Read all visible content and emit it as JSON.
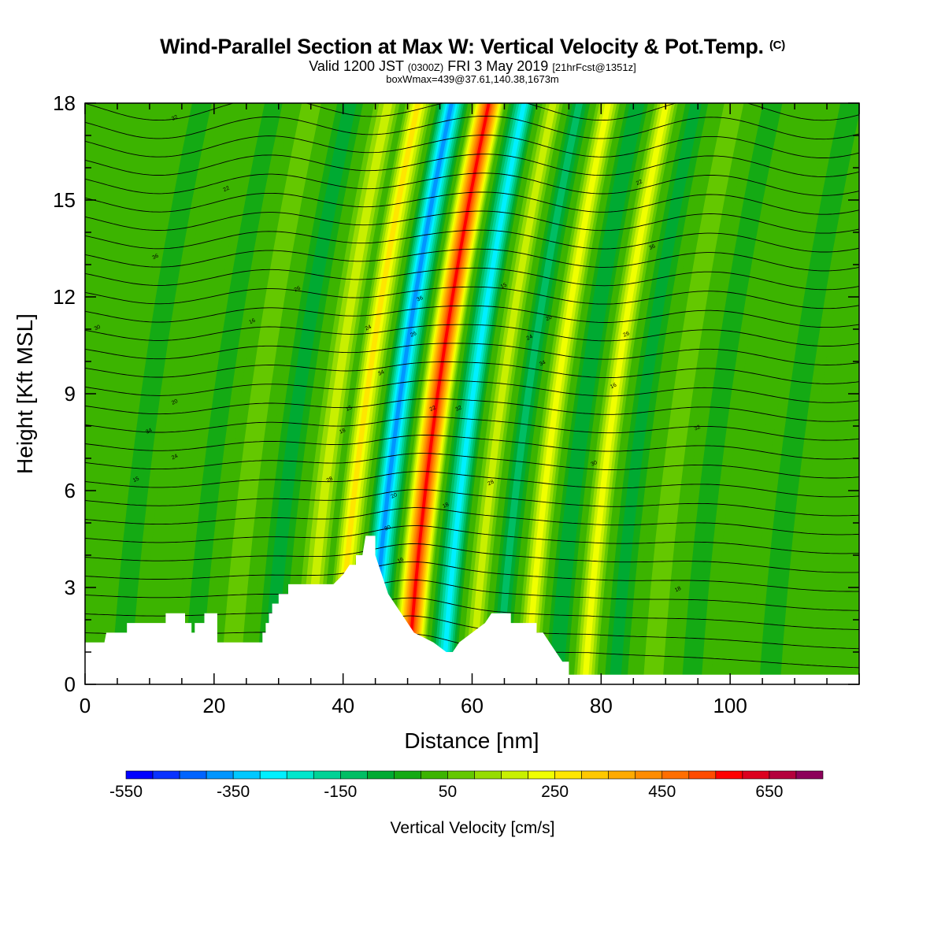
{
  "title": {
    "main": "Wind-Parallel Section at Max W: Vertical Velocity & Pot.Temp.",
    "copyright": "(C)",
    "valid_prefix": "Valid 1200 JST",
    "valid_utc": "(0300Z)",
    "valid_date": "FRI 3 May 2019",
    "forecast": "[21hrFcst@1351z]",
    "boxinfo": "boxWmax=439@37.61,140.38,1673m"
  },
  "chart_data": {
    "type": "heatmap",
    "xlabel": "Distance [nm]",
    "ylabel": "Height [Kft MSL]",
    "xlim": [
      0,
      120
    ],
    "ylim": [
      0,
      18
    ],
    "xticks": [
      0,
      20,
      40,
      60,
      80,
      100
    ],
    "yticks": [
      0,
      3,
      6,
      9,
      12,
      15,
      18
    ],
    "colorbar": {
      "label": "Vertical Velocity [cm/s]",
      "range": [
        -550,
        750
      ],
      "step": 50,
      "tick_labels": [
        -550,
        -350,
        -150,
        50,
        250,
        450,
        650
      ],
      "colors": [
        "#0000ff",
        "#0a32ff",
        "#0064ff",
        "#0096ff",
        "#00c8ff",
        "#00f0ff",
        "#00e6cc",
        "#00d296",
        "#00be64",
        "#00aa32",
        "#14aa14",
        "#3cb400",
        "#64c800",
        "#96dc00",
        "#c8f000",
        "#f0ff00",
        "#ffe600",
        "#ffc800",
        "#ffaa00",
        "#ff8c00",
        "#ff6e00",
        "#ff4b00",
        "#ff0000",
        "#dc001e",
        "#b4003c",
        "#8c005a",
        "#64007d"
      ]
    },
    "series": [
      {
        "name": "Vertical Velocity",
        "type": "filled-contour"
      },
      {
        "name": "Pot.Temp.",
        "type": "contour"
      }
    ],
    "velocity_bands": [
      {
        "x": 5.5,
        "w": -15
      },
      {
        "x": 11.5,
        "w": 10
      },
      {
        "x": 16.5,
        "w": -30
      },
      {
        "x": 22.5,
        "w": 90
      },
      {
        "x": 28.5,
        "w": -60
      },
      {
        "x": 34.5,
        "w": 160
      },
      {
        "x": 39,
        "w": 260
      },
      {
        "x": 44.2,
        "w": -380
      },
      {
        "x": 50,
        "w": 580
      },
      {
        "x": 55.5,
        "w": -280
      },
      {
        "x": 60,
        "w": 190
      },
      {
        "x": 64,
        "w": -140
      },
      {
        "x": 68.5,
        "w": 230
      },
      {
        "x": 73,
        "w": -100
      },
      {
        "x": 77.5,
        "w": 240
      },
      {
        "x": 82,
        "w": -60
      },
      {
        "x": 88,
        "w": 60
      },
      {
        "x": 94,
        "w": -30
      },
      {
        "x": 100,
        "w": 40
      },
      {
        "x": 106,
        "w": -20
      },
      {
        "x": 113,
        "w": 30
      }
    ],
    "terrain": [
      [
        0,
        1.3
      ],
      [
        3,
        1.3
      ],
      [
        3.3,
        1.6
      ],
      [
        6.5,
        1.6
      ],
      [
        6.5,
        1.9
      ],
      [
        12.5,
        1.9
      ],
      [
        12.5,
        2.2
      ],
      [
        15.5,
        2.2
      ],
      [
        15.5,
        1.9
      ],
      [
        16.5,
        1.9
      ],
      [
        16.5,
        1.6
      ],
      [
        17,
        1.6
      ],
      [
        17,
        1.9
      ],
      [
        18.5,
        1.9
      ],
      [
        18.5,
        2.2
      ],
      [
        20.5,
        2.2
      ],
      [
        20.5,
        1.3
      ],
      [
        27.5,
        1.3
      ],
      [
        27.5,
        1.6
      ],
      [
        28,
        1.6
      ],
      [
        28,
        1.9
      ],
      [
        28.5,
        1.9
      ],
      [
        28.5,
        2.2
      ],
      [
        29,
        2.2
      ],
      [
        29,
        2.5
      ],
      [
        30,
        2.5
      ],
      [
        30,
        2.8
      ],
      [
        31.5,
        2.8
      ],
      [
        31.5,
        3.1
      ],
      [
        38.5,
        3.1
      ],
      [
        40,
        3.4
      ],
      [
        41,
        3.7
      ],
      [
        42,
        3.7
      ],
      [
        42,
        4.0
      ],
      [
        43,
        4.0
      ],
      [
        43.5,
        4.6
      ],
      [
        45,
        4.6
      ],
      [
        45,
        4.0
      ],
      [
        46,
        3.4
      ],
      [
        47,
        2.8
      ],
      [
        48,
        2.5
      ],
      [
        49,
        2.2
      ],
      [
        50,
        1.9
      ],
      [
        51,
        1.6
      ],
      [
        54,
        1.3
      ],
      [
        56,
        1.0
      ],
      [
        57,
        1.0
      ],
      [
        58,
        1.3
      ],
      [
        60,
        1.6
      ],
      [
        62,
        1.9
      ],
      [
        63,
        2.2
      ],
      [
        66,
        2.2
      ],
      [
        66,
        1.9
      ],
      [
        70,
        1.9
      ],
      [
        70,
        1.6
      ],
      [
        71,
        1.6
      ],
      [
        72,
        1.3
      ],
      [
        73,
        1.0
      ],
      [
        74,
        0.7
      ],
      [
        75,
        0.7
      ],
      [
        75,
        0.3
      ],
      [
        120,
        0.3
      ]
    ],
    "theta_labels": [
      "15",
      "16",
      "18",
      "20",
      "22",
      "24",
      "26",
      "28",
      "30",
      "32",
      "34",
      "36"
    ]
  }
}
